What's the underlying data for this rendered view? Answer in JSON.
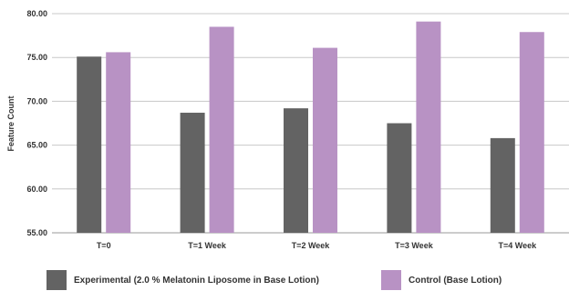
{
  "chart_data": {
    "type": "bar",
    "ylabel": "Feature Count",
    "xlabel": "",
    "ylim": [
      55,
      80
    ],
    "yticks": [
      "55.00",
      "60.00",
      "65.00",
      "70.00",
      "75.00",
      "80.00"
    ],
    "grid": true,
    "legend_position": "bottom",
    "categories": [
      "T=0",
      "T=1 Week",
      "T=2 Week",
      "T=3 Week",
      "T=4 Week"
    ],
    "series": [
      {
        "name": "Experimental (2.0 % Melatonin Liposome in Base Lotion)",
        "color": "#636363",
        "values": [
          75.1,
          68.7,
          69.2,
          67.5,
          65.8
        ]
      },
      {
        "name": "Control (Base Lotion)",
        "color": "#b892c4",
        "values": [
          75.6,
          78.5,
          76.1,
          79.1,
          77.9
        ]
      }
    ]
  }
}
